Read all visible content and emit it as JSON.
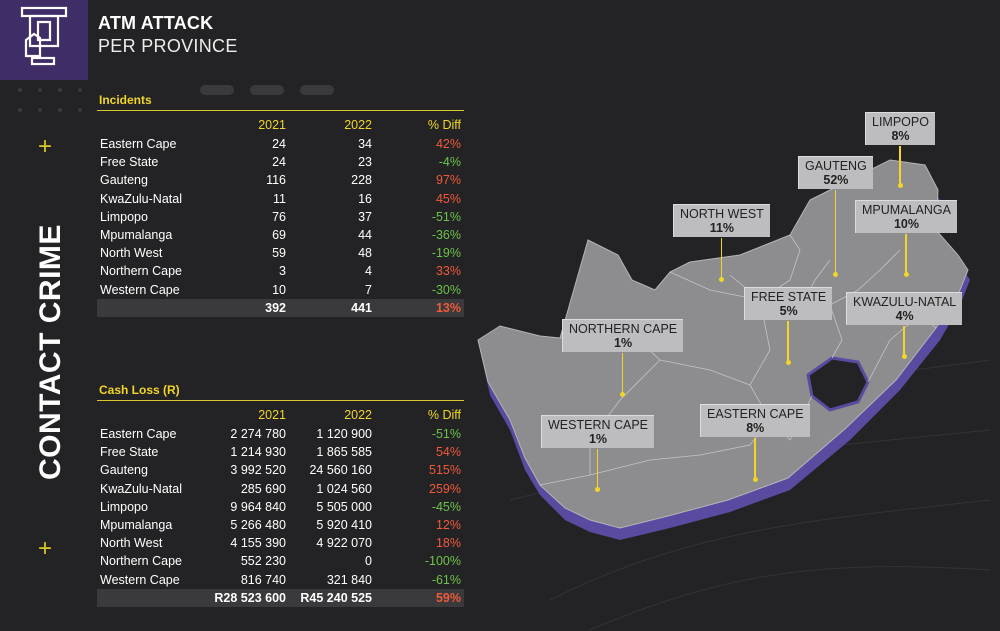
{
  "header": {
    "title": "ATM ATTACK",
    "subtitle": "PER PROVINCE",
    "side_title": "CONTACT CRIME"
  },
  "colors": {
    "accent": "#f1d527",
    "increase": "#ef5a3a",
    "decrease": "#6cc24a",
    "logo_bg": "#3f2d68",
    "map_fill": "#8d8d90",
    "map_shadow": "#5a4ba0"
  },
  "incidents": {
    "title": "Incidents",
    "headers": [
      "2021",
      "2022",
      "% Diff"
    ],
    "rows": [
      {
        "province": "Eastern Cape",
        "y2021": "24",
        "y2022": "34",
        "diff": "42%",
        "trend": "up"
      },
      {
        "province": "Free State",
        "y2021": "24",
        "y2022": "23",
        "diff": "-4%",
        "trend": "down"
      },
      {
        "province": "Gauteng",
        "y2021": "116",
        "y2022": "228",
        "diff": "97%",
        "trend": "up"
      },
      {
        "province": "KwaZulu-Natal",
        "y2021": "11",
        "y2022": "16",
        "diff": "45%",
        "trend": "up"
      },
      {
        "province": "Limpopo",
        "y2021": "76",
        "y2022": "37",
        "diff": "-51%",
        "trend": "down"
      },
      {
        "province": "Mpumalanga",
        "y2021": "69",
        "y2022": "44",
        "diff": "-36%",
        "trend": "down"
      },
      {
        "province": "North West",
        "y2021": "59",
        "y2022": "48",
        "diff": "-19%",
        "trend": "down"
      },
      {
        "province": "Northern Cape",
        "y2021": "3",
        "y2022": "4",
        "diff": "33%",
        "trend": "up"
      },
      {
        "province": "Western Cape",
        "y2021": "10",
        "y2022": "7",
        "diff": "-30%",
        "trend": "down"
      }
    ],
    "total": {
      "y2021": "392",
      "y2022": "441",
      "diff": "13%"
    }
  },
  "cash_loss": {
    "title": "Cash Loss (R)",
    "headers": [
      "2021",
      "2022",
      "% Diff"
    ],
    "rows": [
      {
        "province": "Eastern Cape",
        "y2021": "2 274 780",
        "y2022": "1 120 900",
        "diff": "-51%",
        "trend": "down"
      },
      {
        "province": "Free State",
        "y2021": "1 214 930",
        "y2022": "1 865 585",
        "diff": "54%",
        "trend": "up"
      },
      {
        "province": "Gauteng",
        "y2021": "3 992 520",
        "y2022": "24 560 160",
        "diff": "515%",
        "trend": "up"
      },
      {
        "province": "KwaZulu-Natal",
        "y2021": "285 690",
        "y2022": "1 024 560",
        "diff": "259%",
        "trend": "up"
      },
      {
        "province": "Limpopo",
        "y2021": "9 964 840",
        "y2022": "5 505 000",
        "diff": "-45%",
        "trend": "down"
      },
      {
        "province": "Mpumalanga",
        "y2021": "5 266 480",
        "y2022": "5 920 410",
        "diff": "12%",
        "trend": "up"
      },
      {
        "province": "North West",
        "y2021": "4 155 390",
        "y2022": "4 922 070",
        "diff": "18%",
        "trend": "up"
      },
      {
        "province": "Northern Cape",
        "y2021": "552 230",
        "y2022": "0",
        "diff": "-100%",
        "trend": "down"
      },
      {
        "province": "Western Cape",
        "y2021": "816 740",
        "y2022": "321 840",
        "diff": "-61%",
        "trend": "down"
      }
    ],
    "total": {
      "y2021": "R28 523 600",
      "y2022": "R45 240 525",
      "diff": "59%"
    }
  },
  "map_labels": [
    {
      "name": "LIMPOPO",
      "pct": "8%"
    },
    {
      "name": "GAUTENG",
      "pct": "52%"
    },
    {
      "name": "NORTH WEST",
      "pct": "11%"
    },
    {
      "name": "MPUMALANGA",
      "pct": "10%"
    },
    {
      "name": "FREE STATE",
      "pct": "5%"
    },
    {
      "name": "KWAZULU-NATAL",
      "pct": "4%"
    },
    {
      "name": "NORTHERN CAPE",
      "pct": "1%"
    },
    {
      "name": "WESTERN CAPE",
      "pct": "1%"
    },
    {
      "name": "EASTERN CAPE",
      "pct": "8%"
    }
  ]
}
